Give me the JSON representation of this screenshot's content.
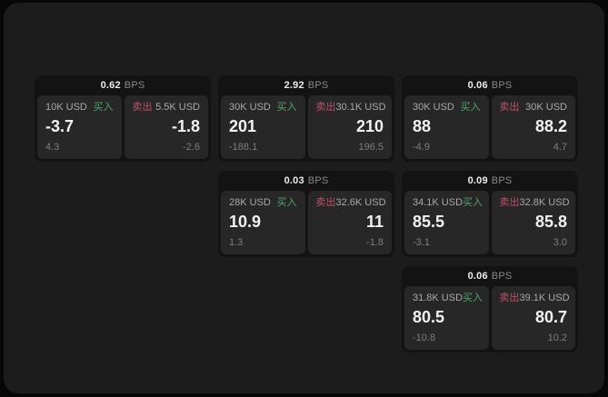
{
  "theme": {
    "outer_bg": "#070707",
    "panel_bg": "#1c1c1c",
    "card_bg": "#131313",
    "tile_bg": "#272727",
    "buy_color": "#4aa76a",
    "sell_color": "#c25068",
    "price_color": "#f2f2f2",
    "amount_color": "#a9a9a9",
    "ref_color": "#7d7d7d"
  },
  "labels": {
    "bps_unit": "BPS",
    "buy": "买入",
    "sell": "卖出"
  },
  "cards": [
    {
      "row": 1,
      "col": 1,
      "bps": "0.62",
      "buy": {
        "amount": "10K USD",
        "price": "-3.7",
        "ref": "4.3"
      },
      "sell": {
        "amount": "5.5K USD",
        "price": "-1.8",
        "ref": "-2.6"
      }
    },
    {
      "row": 1,
      "col": 2,
      "bps": "2.92",
      "buy": {
        "amount": "30K USD",
        "price": "201",
        "ref": "-188.1"
      },
      "sell": {
        "amount": "30.1K USD",
        "price": "210",
        "ref": "196.5"
      }
    },
    {
      "row": 1,
      "col": 3,
      "bps": "0.06",
      "buy": {
        "amount": "30K USD",
        "price": "88",
        "ref": "-4.9"
      },
      "sell": {
        "amount": "30K USD",
        "price": "88.2",
        "ref": "4.7"
      }
    },
    {
      "row": 2,
      "col": 2,
      "bps": "0.03",
      "buy": {
        "amount": "28K USD",
        "price": "10.9",
        "ref": "1.3"
      },
      "sell": {
        "amount": "32.6K USD",
        "price": "11",
        "ref": "-1.8"
      }
    },
    {
      "row": 2,
      "col": 3,
      "bps": "0.09",
      "buy": {
        "amount": "34.1K USD",
        "price": "85.5",
        "ref": "-3.1"
      },
      "sell": {
        "amount": "32.8K USD",
        "price": "85.8",
        "ref": "3.0"
      }
    },
    {
      "row": 3,
      "col": 3,
      "bps": "0.06",
      "buy": {
        "amount": "31.8K USD",
        "price": "80.5",
        "ref": "-10.8"
      },
      "sell": {
        "amount": "39.1K USD",
        "price": "80.7",
        "ref": "10.2"
      }
    }
  ]
}
